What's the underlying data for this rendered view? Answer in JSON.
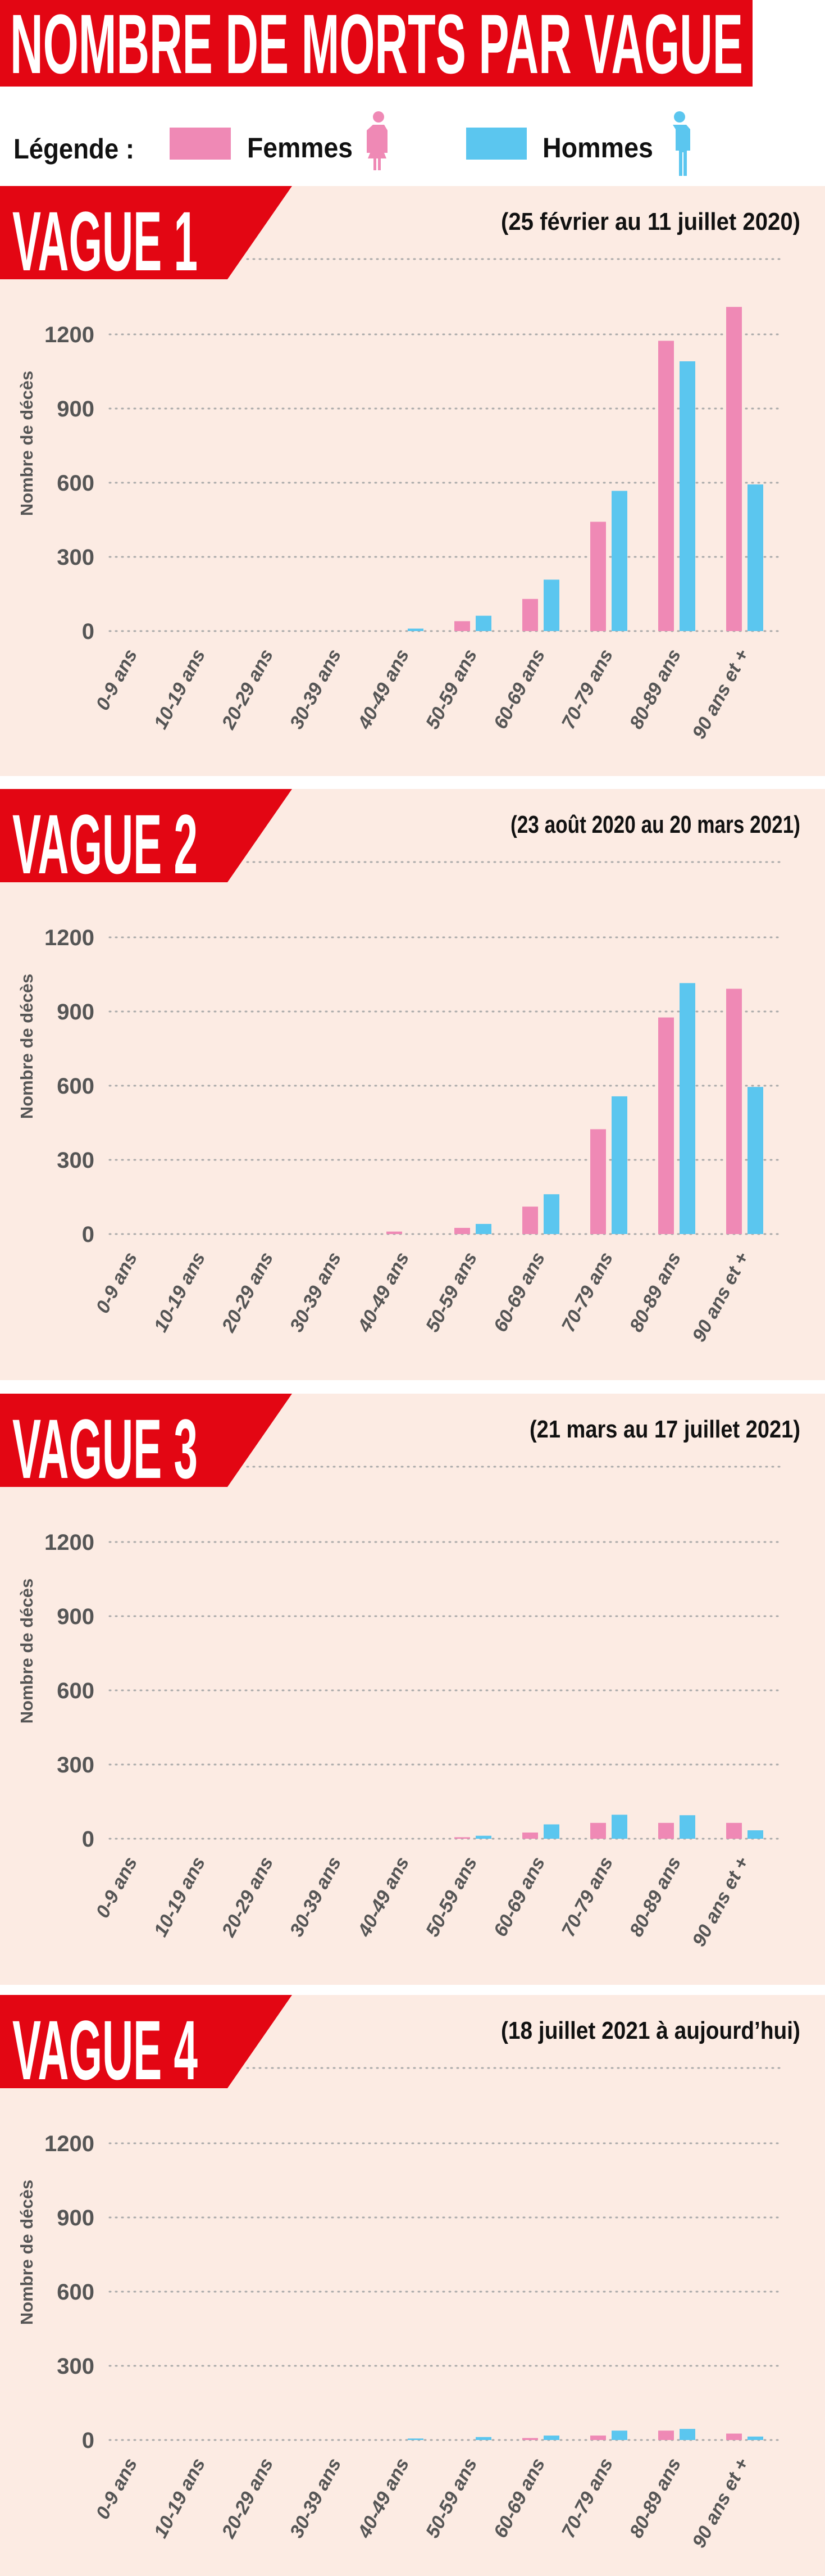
{
  "header": {
    "title": "NOMBRE DE MORTS PAR VAGUE"
  },
  "legend": {
    "label": "Légende :",
    "women": "Femmes",
    "men": "Hommes"
  },
  "colors": {
    "accent": "#e30613",
    "women": "#ef89b5",
    "men": "#5bc6ef",
    "background": "#fcebe3",
    "axis_text": "#555555"
  },
  "chart_data": [
    {
      "type": "bar",
      "title": "VAGUE 1",
      "subtitle": "(25 février au 11 juillet 2020)",
      "ylabel": "Nombre de décès",
      "ylim": [
        0,
        1300
      ],
      "yticks": [
        "0",
        "300",
        "600",
        "900",
        "1200"
      ],
      "categories": [
        "0-9 ans",
        "10-19 ans",
        "20-29 ans",
        "30-39 ans",
        "40-49 ans",
        "50-59 ans",
        "60-69 ans",
        "70-79 ans",
        "80-89 ans",
        "90 ans et +"
      ],
      "series": [
        {
          "name": "Femmes",
          "values": [
            0,
            0,
            0,
            0,
            0,
            40,
            130,
            442,
            1174,
            1311
          ]
        },
        {
          "name": "Hommes",
          "values": [
            0,
            0,
            0,
            0,
            10,
            62,
            208,
            567,
            1091,
            593
          ]
        }
      ]
    },
    {
      "type": "bar",
      "title": "VAGUE 2",
      "subtitle": "(23 août 2020 au 20 mars 2021)",
      "ylabel": "Nombre de décès",
      "ylim": [
        0,
        1300
      ],
      "yticks": [
        "0",
        "300",
        "600",
        "900",
        "1200"
      ],
      "categories": [
        "0-9 ans",
        "10-19 ans",
        "20-29 ans",
        "30-39 ans",
        "40-49 ans",
        "50-59 ans",
        "60-69 ans",
        "70-79 ans",
        "80-89 ans",
        "90 ans et +"
      ],
      "series": [
        {
          "name": "Femmes",
          "values": [
            0,
            0,
            0,
            0,
            10,
            25,
            111,
            424,
            876,
            992
          ]
        },
        {
          "name": "Hommes",
          "values": [
            0,
            0,
            0,
            0,
            0,
            41,
            161,
            557,
            1015,
            595
          ]
        }
      ]
    },
    {
      "type": "bar",
      "title": "VAGUE 3",
      "subtitle": "(21 mars au 17 juillet 2021)",
      "ylabel": "Nombre de décès",
      "ylim": [
        0,
        1300
      ],
      "yticks": [
        "0",
        "300",
        "600",
        "900",
        "1200"
      ],
      "categories": [
        "0-9 ans",
        "10-19 ans",
        "20-29 ans",
        "30-39 ans",
        "40-49 ans",
        "50-59 ans",
        "60-69 ans",
        "70-79 ans",
        "80-89 ans",
        "90 ans et +"
      ],
      "series": [
        {
          "name": "Femmes",
          "values": [
            0,
            0,
            0,
            0,
            0,
            6,
            25,
            64,
            64,
            64
          ]
        },
        {
          "name": "Hommes",
          "values": [
            0,
            0,
            0,
            0,
            0,
            12,
            58,
            97,
            95,
            34
          ]
        }
      ]
    },
    {
      "type": "bar",
      "title": "VAGUE 4",
      "subtitle": "(18 juillet 2021 à aujourd’hui)",
      "ylabel": "Nombre de décès",
      "ylim": [
        0,
        1300
      ],
      "yticks": [
        "0",
        "300",
        "600",
        "900",
        "1200"
      ],
      "categories": [
        "0-9 ans",
        "10-19 ans",
        "20-29 ans",
        "30-39 ans",
        "40-49 ans",
        "50-59 ans",
        "60-69 ans",
        "70-79 ans",
        "80-89 ans",
        "90 ans et +"
      ],
      "series": [
        {
          "name": "Femmes",
          "values": [
            0,
            0,
            0,
            0,
            0,
            0,
            8,
            18,
            38,
            26
          ]
        },
        {
          "name": "Hommes",
          "values": [
            0,
            0,
            0,
            0,
            6,
            12,
            18,
            38,
            45,
            14
          ]
        }
      ]
    }
  ]
}
